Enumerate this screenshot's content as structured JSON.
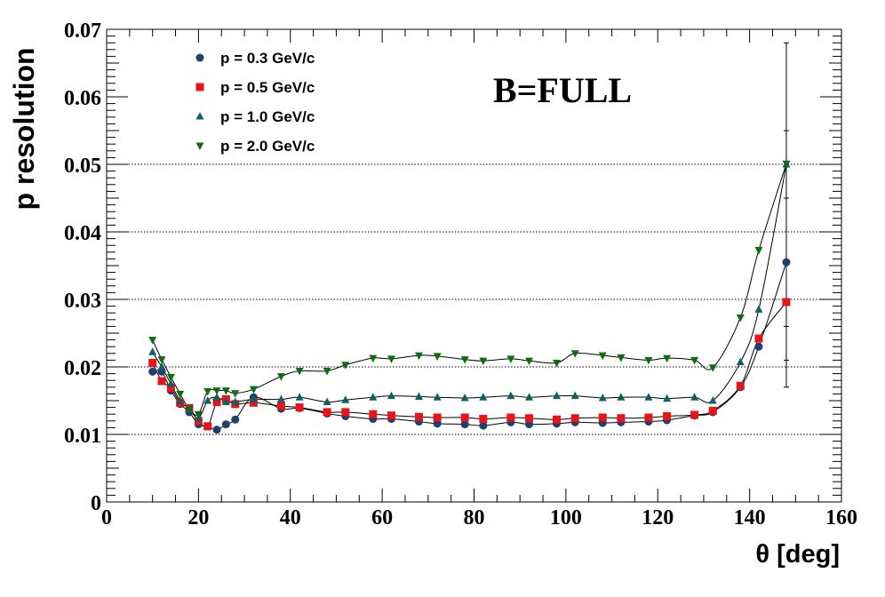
{
  "chart_data": {
    "type": "scatter",
    "xlabel": "θ [deg]",
    "ylabel": "p resolution",
    "xlim": [
      0,
      160
    ],
    "ylim": [
      0,
      0.07
    ],
    "x_ticks": [
      "0",
      "20",
      "40",
      "60",
      "80",
      "100",
      "120",
      "140",
      "160"
    ],
    "y_ticks": [
      "0",
      "0.01",
      "0.02",
      "0.03",
      "0.04",
      "0.05",
      "0.06",
      "0.07"
    ],
    "grid": "horizontal dotted at 0.01, 0.02, 0.03, 0.04, 0.05",
    "legend_position": "top-left",
    "annotation": "B=FULL",
    "series": [
      {
        "name": "p = 0.3 GeV/c",
        "marker": "circle",
        "color": "#1f3f6e",
        "x": [
          10,
          12,
          14,
          16,
          18,
          20,
          22,
          24,
          26,
          28,
          32,
          38,
          42,
          48,
          52,
          58,
          62,
          68,
          72,
          78,
          82,
          88,
          92,
          98,
          102,
          108,
          112,
          118,
          122,
          128,
          132,
          138,
          142,
          148
        ],
        "y": [
          0.0193,
          0.0193,
          0.0165,
          0.0145,
          0.0133,
          0.0115,
          0.0112,
          0.0107,
          0.0115,
          0.0122,
          0.0155,
          0.0138,
          0.0139,
          0.0131,
          0.0127,
          0.0123,
          0.0123,
          0.0119,
          0.0116,
          0.0115,
          0.0113,
          0.0118,
          0.0115,
          0.0116,
          0.0118,
          0.0117,
          0.0118,
          0.0119,
          0.0121,
          0.0128,
          0.0133,
          0.017,
          0.023,
          0.0355
        ]
      },
      {
        "name": "p = 0.5 GeV/c",
        "marker": "square",
        "color": "#e8141a",
        "x": [
          10,
          12,
          14,
          16,
          18,
          20,
          22,
          24,
          26,
          28,
          32,
          38,
          42,
          48,
          52,
          58,
          62,
          68,
          72,
          78,
          82,
          88,
          92,
          98,
          102,
          108,
          112,
          118,
          122,
          128,
          132,
          138,
          142,
          148
        ],
        "y": [
          0.0206,
          0.0179,
          0.0169,
          0.0147,
          0.0139,
          0.012,
          0.0112,
          0.0148,
          0.0152,
          0.0145,
          0.0147,
          0.0142,
          0.014,
          0.0133,
          0.0133,
          0.013,
          0.0128,
          0.0126,
          0.0125,
          0.0125,
          0.0123,
          0.0125,
          0.0124,
          0.0122,
          0.0124,
          0.0125,
          0.0124,
          0.0125,
          0.0127,
          0.0129,
          0.0135,
          0.0172,
          0.0242,
          0.0296
        ]
      },
      {
        "name": "p = 1.0 GeV/c",
        "marker": "triangle-up",
        "color": "#0f6060",
        "x": [
          10,
          12,
          14,
          16,
          18,
          20,
          22,
          24,
          26,
          28,
          32,
          38,
          42,
          48,
          52,
          58,
          62,
          68,
          72,
          78,
          82,
          88,
          92,
          98,
          102,
          108,
          112,
          118,
          122,
          128,
          132,
          138,
          142,
          148
        ],
        "y": [
          0.0222,
          0.02,
          0.0175,
          0.015,
          0.0138,
          0.0124,
          0.015,
          0.0155,
          0.0148,
          0.0148,
          0.0152,
          0.0152,
          0.0155,
          0.0148,
          0.0151,
          0.0155,
          0.0157,
          0.0156,
          0.0155,
          0.0154,
          0.0155,
          0.0157,
          0.0155,
          0.0157,
          0.0157,
          0.0154,
          0.0155,
          0.0155,
          0.0153,
          0.0155,
          0.015,
          0.0207,
          0.0285,
          0.05
        ]
      },
      {
        "name": "p = 2.0 GeV/c",
        "marker": "triangle-down",
        "color": "#0d6e0d",
        "x": [
          10,
          12,
          14,
          16,
          18,
          20,
          22,
          24,
          26,
          28,
          32,
          38,
          42,
          48,
          52,
          58,
          62,
          68,
          72,
          78,
          82,
          88,
          92,
          98,
          102,
          108,
          112,
          118,
          122,
          128,
          132,
          138,
          142,
          148
        ],
        "y": [
          0.024,
          0.0211,
          0.0185,
          0.016,
          0.0137,
          0.013,
          0.0164,
          0.0165,
          0.0165,
          0.0161,
          0.0167,
          0.0186,
          0.0194,
          0.0194,
          0.0203,
          0.0213,
          0.0212,
          0.0217,
          0.0216,
          0.0211,
          0.0209,
          0.0212,
          0.0209,
          0.0206,
          0.022,
          0.0217,
          0.0214,
          0.021,
          0.0213,
          0.021,
          0.0199,
          0.0273,
          0.0373,
          0.0501
        ]
      }
    ],
    "error_bar": {
      "x": 148,
      "low": 0.017,
      "high": 0.068
    }
  }
}
